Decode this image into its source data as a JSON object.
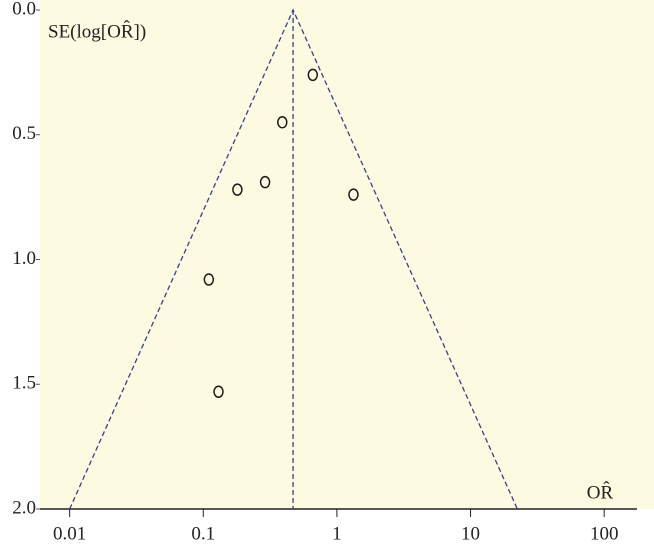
{
  "chart_data": {
    "type": "scatter",
    "y_label": "SE(log[OR̂])",
    "x_label": "OR̂",
    "x": [
      0.66,
      0.39,
      0.18,
      0.29,
      1.33,
      0.11,
      0.13
    ],
    "y": [
      0.26,
      0.45,
      0.72,
      0.69,
      0.74,
      1.08,
      1.53
    ],
    "pooled_or": 0.47,
    "funnel": {
      "x": [
        0.01,
        0.47,
        22.4
      ],
      "y": [
        2,
        0,
        2
      ]
    },
    "xscale": "log",
    "xlim": [
      0.006,
      176
    ],
    "xticks": [
      0.01,
      0.1,
      1,
      10,
      100
    ],
    "ylim": [
      0,
      2
    ],
    "y_inverted": true,
    "yticks": [
      {
        "value": 0,
        "label": "0.0"
      },
      0.5,
      {
        "value": 1,
        "label": "1.0"
      },
      1.5,
      {
        "value": 2,
        "label": "2.0"
      }
    ],
    "color": "#1a1a1a",
    "funnel_color": "#3b3f8c",
    "background": "#fcfae0"
  }
}
